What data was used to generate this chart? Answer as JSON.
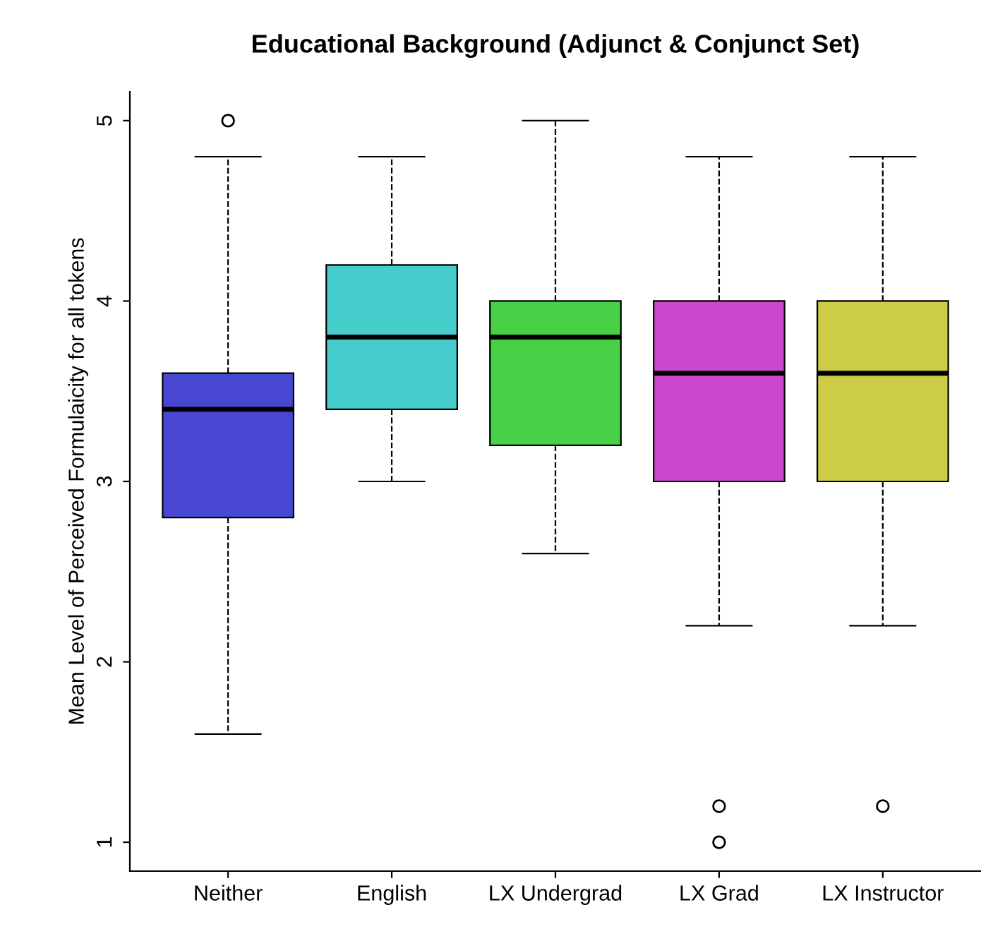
{
  "chart_data": {
    "type": "box",
    "title": "Educational Background (Adjunct & Conjunct Set)",
    "ylabel": "Mean Level of Perceived Formulaicity for all tokens",
    "categories": [
      "Neither",
      "English",
      "LX Undergrad",
      "LX Grad",
      "LX Instructor"
    ],
    "colors": [
      "#4747d1",
      "#47cccc",
      "#47d147",
      "#cc47cc",
      "#cccc47"
    ],
    "boxes": [
      {
        "low": 1.6,
        "q1": 2.8,
        "median": 3.4,
        "q3": 3.6,
        "high": 4.8,
        "outliers": [
          5.0
        ]
      },
      {
        "low": 3.0,
        "q1": 3.4,
        "median": 3.8,
        "q3": 4.2,
        "high": 4.8
      },
      {
        "low": 2.6,
        "q1": 3.2,
        "median": 3.8,
        "q3": 4.0,
        "high": 5.0
      },
      {
        "low": 2.2,
        "q1": 3.0,
        "median": 3.6,
        "q3": 4.0,
        "high": 4.8,
        "outliers": [
          1.2,
          1.0
        ]
      },
      {
        "low": 2.2,
        "q1": 3.0,
        "median": 3.6,
        "q3": 4.0,
        "high": 4.8,
        "outliers": [
          1.2
        ]
      }
    ],
    "ylim": [
      0.84,
      5.16
    ],
    "yticks": [
      1,
      2,
      3,
      4,
      5
    ],
    "grid": false
  }
}
